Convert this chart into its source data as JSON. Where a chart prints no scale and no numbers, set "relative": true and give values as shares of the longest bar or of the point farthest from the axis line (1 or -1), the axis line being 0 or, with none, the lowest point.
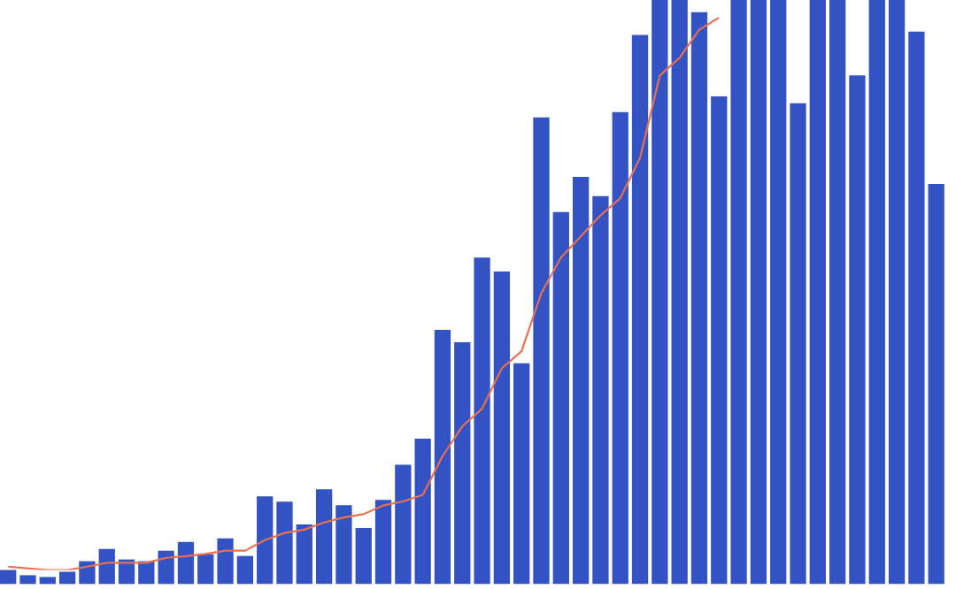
{
  "chart_data": [
    {
      "type": "bar",
      "relative": true,
      "color": "#3352c4",
      "categories": [
        null,
        null,
        null,
        null,
        null,
        null,
        null,
        null,
        null,
        null,
        null,
        null,
        null,
        null,
        null,
        null,
        null,
        null,
        null,
        null,
        null,
        null,
        null,
        null,
        null,
        null,
        null,
        null,
        null,
        null,
        null,
        null,
        null,
        null,
        null,
        null,
        null,
        null,
        null,
        null,
        null,
        null,
        null,
        null,
        null,
        null,
        null,
        null
      ],
      "values": [
        0.024,
        0.015,
        0.012,
        0.021,
        0.039,
        0.06,
        0.042,
        0.039,
        0.057,
        0.072,
        0.051,
        0.078,
        0.048,
        0.15,
        0.141,
        0.102,
        0.162,
        0.135,
        0.096,
        0.144,
        0.204,
        0.249,
        0.435,
        0.414,
        0.559,
        0.535,
        0.378,
        0.799,
        0.637,
        0.697,
        0.664,
        0.808,
        0.94,
        1,
        1,
        0.979,
        0.835,
        1,
        1,
        1,
        0.823,
        1,
        1,
        0.871,
        1,
        1,
        0.946,
        0.685
      ]
    },
    {
      "type": "line",
      "relative": true,
      "color": "#e8704f",
      "categories": [
        null,
        null,
        null,
        null,
        null,
        null,
        null,
        null,
        null,
        null,
        null,
        null,
        null,
        null,
        null,
        null,
        null,
        null,
        null,
        null,
        null,
        null,
        null,
        null,
        null,
        null,
        null,
        null,
        null,
        null,
        null,
        null,
        null,
        null,
        null,
        null,
        null
      ],
      "values": [
        0.006,
        0.003,
        0,
        0,
        0.006,
        0.013,
        0.013,
        0.013,
        0.022,
        0.025,
        0.029,
        0.035,
        0.035,
        0.054,
        0.067,
        0.073,
        0.086,
        0.095,
        0.101,
        0.117,
        0.124,
        0.136,
        0.206,
        0.26,
        0.292,
        0.365,
        0.396,
        0.501,
        0.566,
        0.604,
        0.642,
        0.673,
        0.746,
        0.895,
        0.927,
        0.978,
        1
      ]
    }
  ]
}
